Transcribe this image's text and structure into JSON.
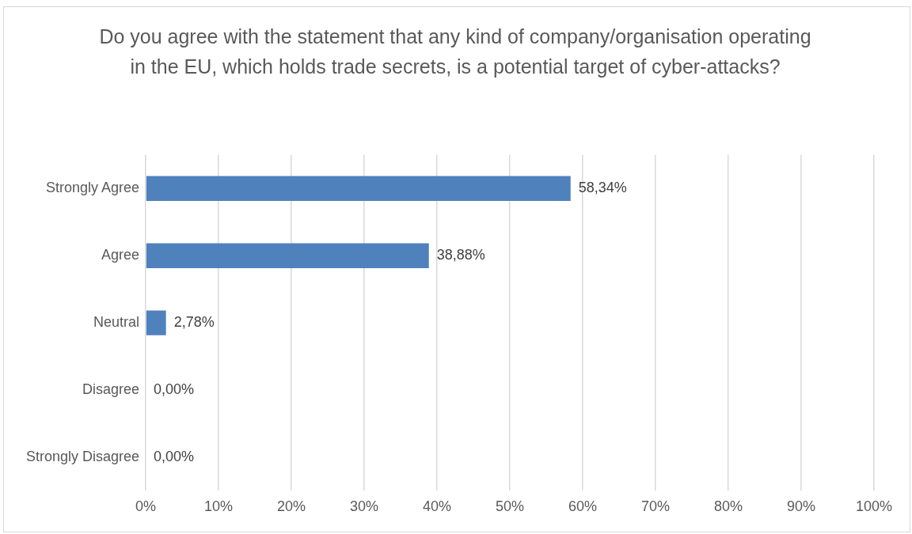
{
  "chart_data": {
    "type": "bar",
    "orientation": "horizontal",
    "title": "Do you agree with the statement that any kind of company/organisation operating in the EU, which holds trade secrets, is a potential target of cyber-attacks?",
    "categories": [
      "Strongly Agree",
      "Agree",
      "Neutral",
      "Disagree",
      "Strongly Disagree"
    ],
    "values": [
      58.34,
      38.88,
      2.78,
      0,
      0
    ],
    "value_labels": [
      "58,34%",
      "38,88%",
      "2,78%",
      "0,00%",
      "0,00%"
    ],
    "color": "#4f81bd",
    "xlim": [
      0,
      100
    ],
    "xticks": [
      {
        "value": 0,
        "label": "0%"
      },
      {
        "value": 10,
        "label": "10%"
      },
      {
        "value": 20,
        "label": "20%"
      },
      {
        "value": 30,
        "label": "30%"
      },
      {
        "value": 40,
        "label": "40%"
      },
      {
        "value": 50,
        "label": "50%"
      },
      {
        "value": 60,
        "label": "60%"
      },
      {
        "value": 70,
        "label": "70%"
      },
      {
        "value": 80,
        "label": "80%"
      },
      {
        "value": 90,
        "label": "90%"
      },
      {
        "value": 100,
        "label": "100%"
      }
    ],
    "grid": "x"
  }
}
